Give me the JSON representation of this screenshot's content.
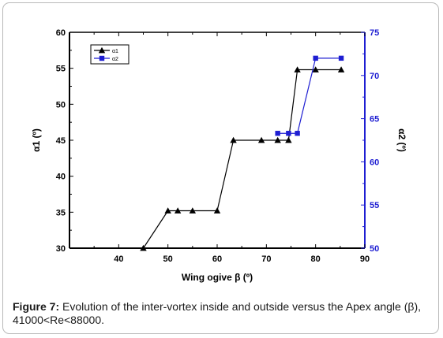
{
  "chart_data": {
    "type": "line",
    "xlabel": "Wing ogive β (º)",
    "ylabel_left": "α1 (º)",
    "ylabel_right": "α2 (º)",
    "xlim": [
      30,
      90
    ],
    "ylim_left": [
      30,
      60
    ],
    "ylim_right": [
      50,
      75
    ],
    "x_ticks": [
      40,
      50,
      60,
      70,
      80,
      90
    ],
    "y_ticks_left": [
      30,
      35,
      40,
      45,
      50,
      55,
      60
    ],
    "y_ticks_right": [
      50,
      55,
      60,
      65,
      70,
      75
    ],
    "grid": false,
    "legend_position": "top-left",
    "left_axis_color": "#000000",
    "right_axis_color": "#1e1ed2",
    "series": [
      {
        "name": "α1",
        "axis": "left",
        "color": "#000000",
        "marker": "triangle",
        "x": [
          45,
          50,
          52,
          55,
          60,
          63.3,
          69,
          72.3,
          74.5,
          76.3,
          80,
          85.2
        ],
        "y": [
          30,
          35.2,
          35.2,
          35.2,
          35.2,
          45,
          45,
          45,
          45,
          54.8,
          54.8,
          54.8
        ]
      },
      {
        "name": "α2",
        "axis": "right",
        "color": "#1e1ed2",
        "marker": "square",
        "x": [
          72.3,
          74.5,
          76.3,
          80,
          85.2
        ],
        "y": [
          63.3,
          63.3,
          63.3,
          72,
          72
        ]
      }
    ]
  },
  "caption": {
    "label": "Figure 7:",
    "text": " Evolution of the inter-vortex inside and outside versus the Apex angle (β), 41000<Re<88000."
  }
}
